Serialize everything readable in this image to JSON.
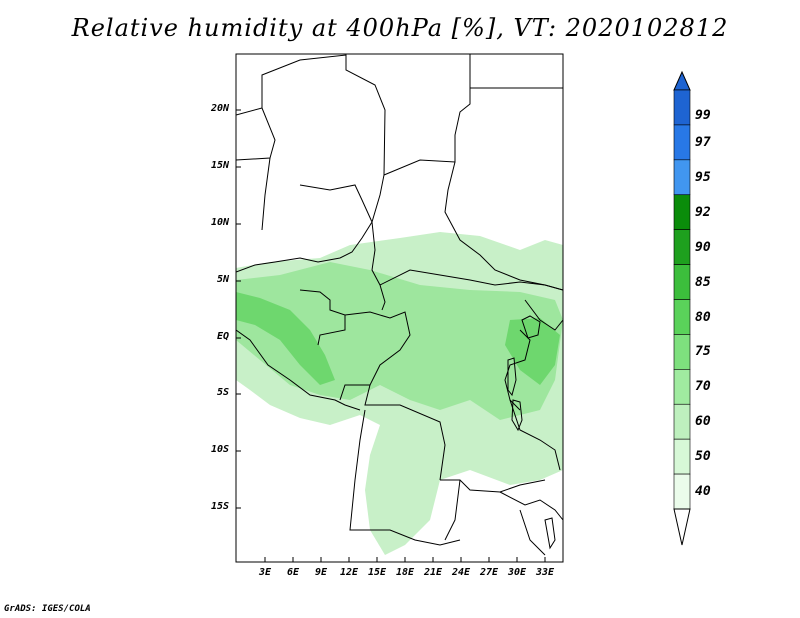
{
  "title": "Relative humidity at 400hPa [%], VT: 2020102812",
  "credit": "GrADS: IGES/COLA",
  "lat_labels": [
    "20N",
    "15N",
    "10N",
    "5N",
    "EQ",
    "5S",
    "10S",
    "15S"
  ],
  "lon_labels": [
    "3E",
    "6E",
    "9E",
    "12E",
    "15E",
    "18E",
    "21E",
    "24E",
    "27E",
    "30E",
    "33E"
  ],
  "colorbar": {
    "labels": [
      "99",
      "97",
      "95",
      "92",
      "90",
      "85",
      "80",
      "75",
      "70",
      "60",
      "50",
      "40"
    ],
    "colors": [
      "#1e64d2",
      "#2878e6",
      "#4196f0",
      "#0a8c0a",
      "#1ea01e",
      "#3cbe3c",
      "#5ad25a",
      "#7ee07e",
      "#a0eba0",
      "#bef0be",
      "#d7f8d7",
      "#ebfceb"
    ]
  },
  "map": {
    "fill_light": "#c8f0c8",
    "fill_mid": "#9ee69e",
    "fill_dark": "#6ed76e",
    "border": "#000000"
  }
}
